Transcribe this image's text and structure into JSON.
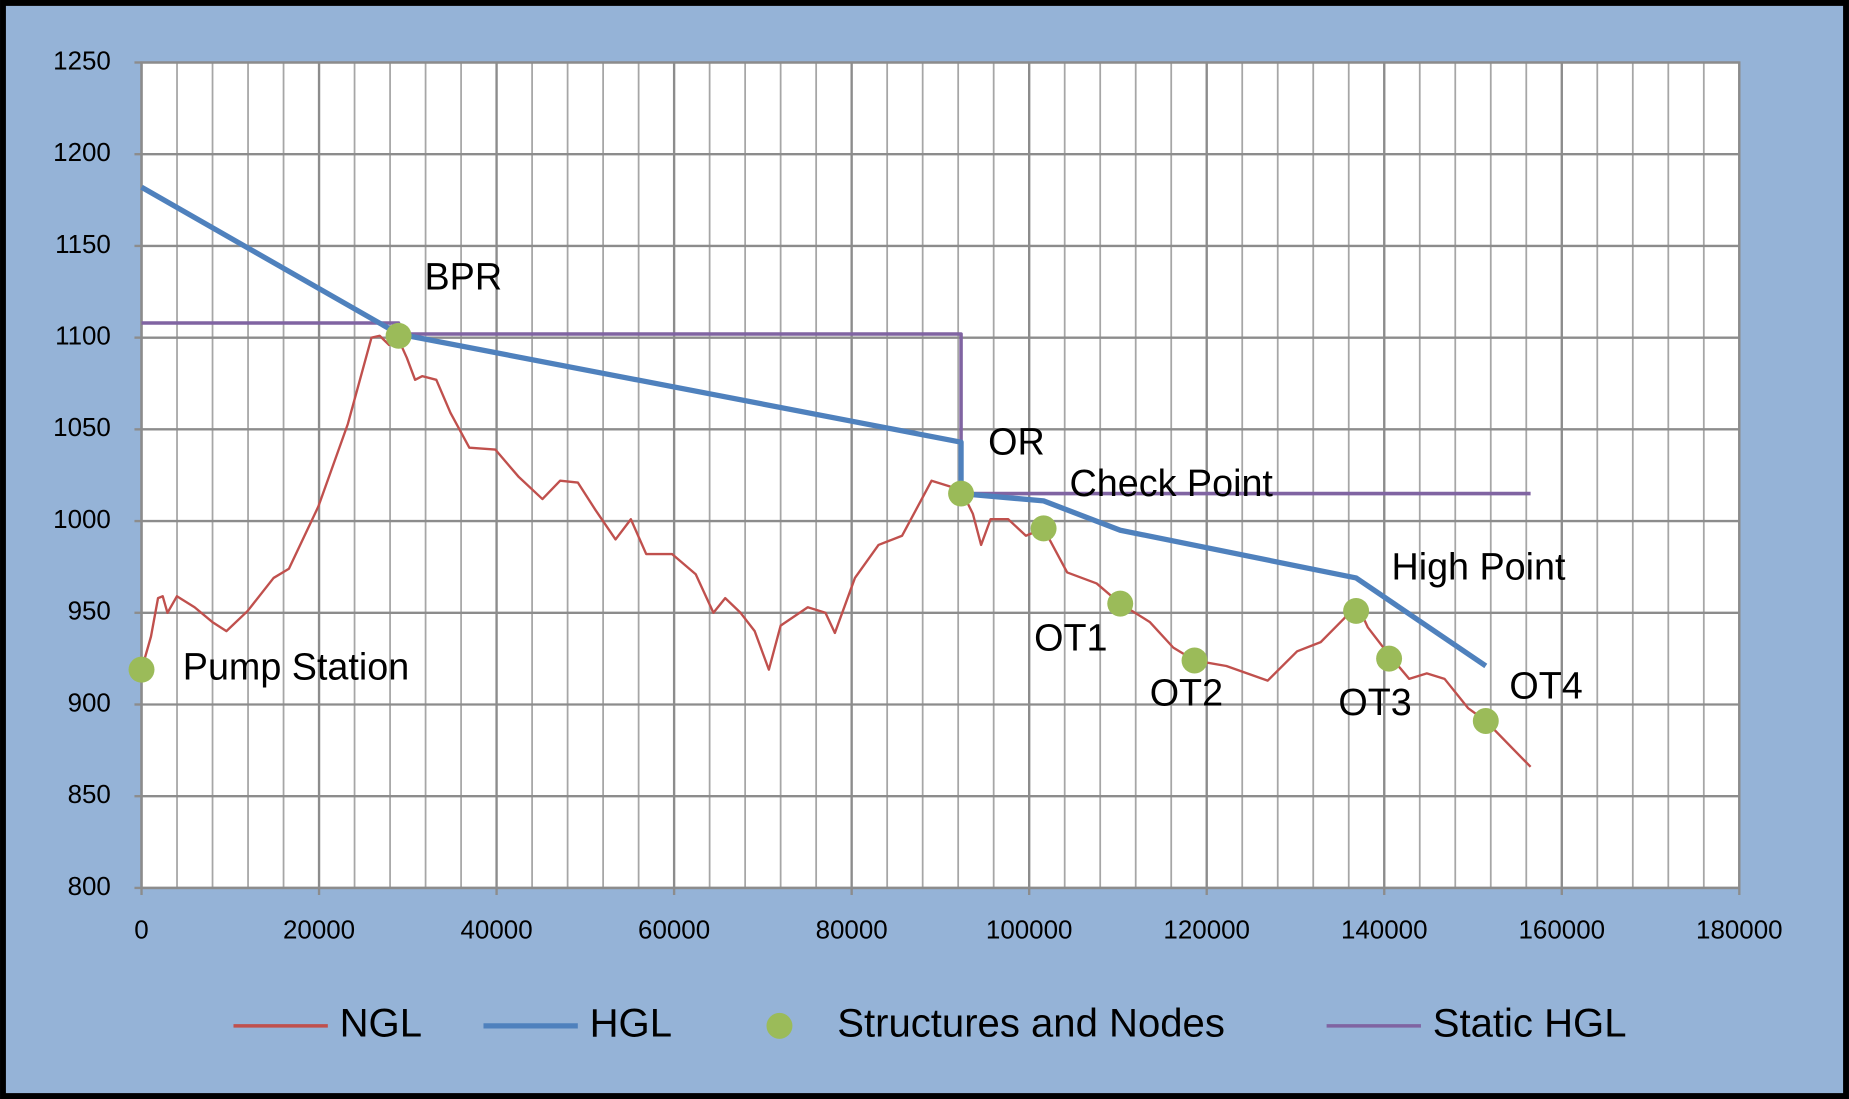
{
  "chart_data": {
    "type": "line",
    "xlim": [
      0,
      180000
    ],
    "xticks": [
      0,
      20000,
      40000,
      60000,
      80000,
      100000,
      120000,
      140000,
      160000,
      180000
    ],
    "x_minor_step": 4000,
    "ylim": [
      800,
      1250
    ],
    "yticks": [
      800,
      850,
      900,
      950,
      1000,
      1050,
      1100,
      1150,
      1200,
      1250
    ],
    "grid": true,
    "legend": "bottom",
    "series": [
      {
        "name": "NGL",
        "color": "#c0504d",
        "style": "line",
        "x": [
          0,
          1063,
          1860,
          2391,
          2922,
          3985,
          5978,
          7970,
          9565,
          11956,
          14878,
          16605,
          19926,
          23247,
          25904,
          26834,
          27897,
          28959,
          29889,
          30819,
          31616,
          33210,
          34804,
          36930,
          39852,
          42509,
          45166,
          47159,
          49151,
          51144,
          53402,
          55129,
          56856,
          59779,
          62435,
          64428,
          65756,
          67483,
          69077,
          70672,
          72000,
          75055,
          77048,
          78111,
          80369,
          83026,
          85683,
          89004,
          90996,
          92325,
          93653,
          94583,
          95646,
          97638,
          99631,
          101624,
          104280,
          107601,
          110258,
          113579,
          116236,
          118627,
          122214,
          126863,
          130184,
          132841,
          135498,
          136827,
          138155,
          140546,
          142804,
          144797,
          146790,
          149446,
          151439,
          156487
        ],
        "values": [
          919,
          937,
          958,
          959,
          950,
          959,
          953,
          945,
          940,
          951,
          969,
          974,
          1008,
          1053,
          1100,
          1101,
          1096,
          1099,
          1089,
          1077,
          1079,
          1077,
          1059,
          1040,
          1039,
          1024,
          1012,
          1022,
          1021,
          1006,
          990,
          1001,
          982,
          982,
          971,
          950,
          958,
          950,
          940,
          919,
          943,
          953,
          950,
          939,
          969,
          987,
          992,
          1022,
          1019,
          1017,
          1004,
          987,
          1001,
          1001,
          992,
          996,
          972,
          966,
          955,
          945,
          931,
          924,
          921,
          913,
          929,
          934,
          947,
          956,
          942,
          927,
          914,
          917,
          914,
          898,
          891,
          866
        ]
      },
      {
        "name": "HGL",
        "color": "#4f81bd",
        "style": "line",
        "x": [
          0,
          28959,
          92325,
          92325,
          101624,
          110258,
          136827,
          151439
        ],
        "values": [
          1182,
          1102,
          1043,
          1015,
          1011,
          995,
          969,
          921
        ]
      },
      {
        "name": "Structures and Nodes",
        "color": "#9bbb59",
        "style": "marker",
        "x": [
          0,
          28959,
          92325,
          101624,
          110258,
          118627,
          136827,
          140546,
          151439
        ],
        "values": [
          919,
          1101,
          1015,
          996,
          955,
          924,
          951,
          925,
          891
        ]
      },
      {
        "name": "Static HGL",
        "color": "#8064a2",
        "style": "line",
        "x": [
          0,
          28959,
          28959,
          92325,
          92325,
          156487
        ],
        "values": [
          1108,
          1108,
          1102,
          1102,
          1015,
          1015
        ]
      }
    ],
    "annotations": [
      "Pump Station",
      "BPR",
      "OR",
      "Check Point",
      "OT1",
      "OT2",
      "High Point",
      "OT3",
      "OT4"
    ]
  }
}
